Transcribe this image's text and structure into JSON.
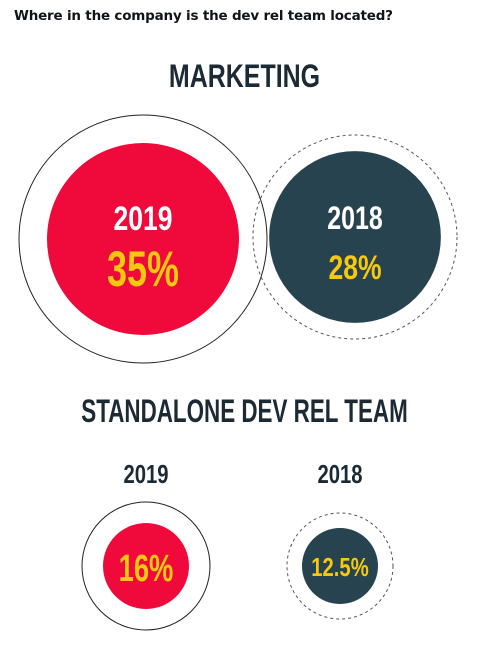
{
  "question": "Where in the company is the dev rel team located?",
  "colors": {
    "red": "#ef0a3b",
    "dark": "#27434f",
    "yellow": "#f6c90f",
    "white": "#ffffff",
    "title": "#1b2a34"
  },
  "chart_data": [
    {
      "type": "bubble",
      "title": "MARKETING",
      "points": [
        {
          "year": "2019",
          "label": "35%",
          "value": 35
        },
        {
          "year": "2018",
          "label": "28%",
          "value": 28
        }
      ]
    },
    {
      "type": "bubble",
      "title": "STANDALONE DEV REL TEAM",
      "points": [
        {
          "year": "2019",
          "label": "16%",
          "value": 16
        },
        {
          "year": "2018",
          "label": "12.5%",
          "value": 12.5
        }
      ]
    }
  ]
}
